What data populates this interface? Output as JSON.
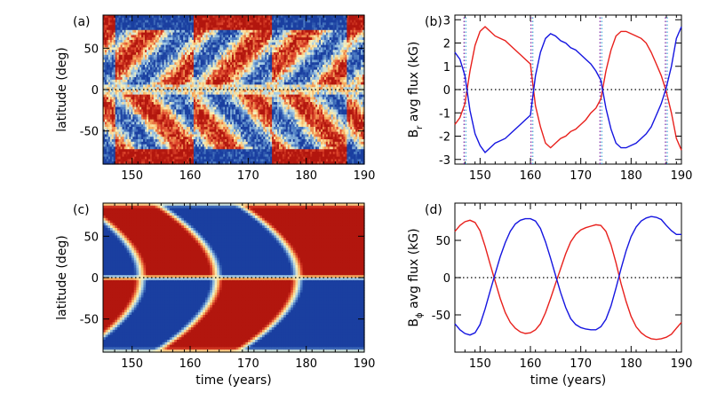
{
  "chart_data": [
    {
      "id": "a",
      "type": "heatmap",
      "panel_label": "(a)",
      "xlabel": "",
      "ylabel": "latitude (deg)",
      "xlim": [
        145,
        190
      ],
      "ylim": [
        -90,
        90
      ],
      "xticks": [
        150,
        160,
        170,
        180,
        190
      ],
      "yticks": [
        -50,
        0,
        50
      ],
      "zero_line": "dotted",
      "colormap": [
        "#1a3fa0",
        "#4f7fc4",
        "#a9cfe6",
        "#fbf1b8",
        "#f7b463",
        "#e0492e",
        "#b2160e"
      ],
      "texture": "noisy",
      "polar_sign_changes": [
        147,
        160.5,
        174,
        187
      ],
      "reversal_times": [
        147,
        160.5,
        174,
        187
      ]
    },
    {
      "id": "b",
      "type": "line",
      "panel_label": "(b)",
      "xlabel": "",
      "ylabel": "B_r avg flux (kG)",
      "ylabel_main": "B",
      "ylabel_sub": "r",
      "ylabel_rest": " avg flux (kG)",
      "xlim": [
        145,
        190
      ],
      "ylim": [
        -3.2,
        3.2
      ],
      "xticks": [
        150,
        160,
        170,
        180,
        190
      ],
      "yticks": [
        -3,
        -2,
        -1,
        0,
        1,
        2,
        3
      ],
      "zero_line": "dotted",
      "vertical_markers": [
        147,
        160.3,
        174,
        187
      ],
      "vertical_marker_colors": [
        "#7a1fa2",
        "#3fa7d6"
      ],
      "series": [
        {
          "color": "#e8201c",
          "x": [
            145,
            146,
            147,
            148,
            149,
            150,
            151,
            152,
            153,
            154,
            155,
            156,
            157,
            158,
            159,
            160,
            161,
            162,
            163,
            164,
            165,
            166,
            167,
            168,
            169,
            170,
            171,
            172,
            173,
            174,
            175,
            176,
            177,
            178,
            179,
            180,
            181,
            182,
            183,
            184,
            185,
            186,
            187,
            188,
            189,
            190
          ],
          "y": [
            -1.5,
            -1.2,
            -0.6,
            0.8,
            1.9,
            2.5,
            2.7,
            2.5,
            2.3,
            2.2,
            2.1,
            1.9,
            1.7,
            1.5,
            1.3,
            1.1,
            -0.7,
            -1.6,
            -2.3,
            -2.5,
            -2.3,
            -2.1,
            -2.0,
            -1.8,
            -1.7,
            -1.5,
            -1.3,
            -1.0,
            -0.8,
            -0.4,
            0.8,
            1.7,
            2.3,
            2.5,
            2.5,
            2.4,
            2.3,
            2.2,
            2.0,
            1.6,
            1.1,
            0.6,
            -0.1,
            -1.0,
            -2.1,
            -2.6
          ]
        },
        {
          "color": "#1515e0",
          "x": [
            145,
            146,
            147,
            148,
            149,
            150,
            151,
            152,
            153,
            154,
            155,
            156,
            157,
            158,
            159,
            160,
            161,
            162,
            163,
            164,
            165,
            166,
            167,
            168,
            169,
            170,
            171,
            172,
            173,
            174,
            175,
            176,
            177,
            178,
            179,
            180,
            181,
            182,
            183,
            184,
            185,
            186,
            187,
            188,
            189,
            190
          ],
          "y": [
            1.6,
            1.3,
            0.6,
            -0.9,
            -1.9,
            -2.4,
            -2.7,
            -2.5,
            -2.3,
            -2.2,
            -2.1,
            -1.9,
            -1.7,
            -1.5,
            -1.3,
            -1.1,
            0.6,
            1.6,
            2.2,
            2.4,
            2.3,
            2.1,
            2.0,
            1.8,
            1.7,
            1.5,
            1.3,
            1.1,
            0.8,
            0.4,
            -0.8,
            -1.7,
            -2.3,
            -2.5,
            -2.5,
            -2.4,
            -2.3,
            -2.1,
            -1.9,
            -1.6,
            -1.1,
            -0.6,
            0.1,
            1.0,
            2.2,
            2.7
          ]
        }
      ]
    },
    {
      "id": "c",
      "type": "heatmap",
      "panel_label": "(c)",
      "xlabel": "time (years)",
      "ylabel": "latitude (deg)",
      "xlim": [
        145,
        190
      ],
      "ylim": [
        -90,
        90
      ],
      "xticks": [
        150,
        160,
        170,
        180,
        190
      ],
      "yticks": [
        -50,
        0,
        50
      ],
      "zero_line": "dotted",
      "colormap": [
        "#1a3fa0",
        "#4f7fc4",
        "#a9cfe6",
        "#fbf1b8",
        "#f7b463",
        "#e0492e",
        "#b2160e"
      ],
      "texture": "smooth",
      "equator_switch_times": [
        151.5,
        164.5,
        178.5
      ],
      "pole_switch_times": [
        152,
        165.5,
        179,
        190
      ],
      "reversal_times": [
        151.5,
        164.5,
        178.5
      ]
    },
    {
      "id": "d",
      "type": "line",
      "panel_label": "(d)",
      "xlabel": "time (years)",
      "ylabel": "B_phi avg flux (kG)",
      "ylabel_main": "B",
      "ylabel_sub": "ϕ",
      "ylabel_rest": " avg flux (kG)",
      "xlim": [
        145,
        190
      ],
      "ylim": [
        -100,
        100
      ],
      "xticks": [
        150,
        160,
        170,
        180,
        190
      ],
      "yticks": [
        -50,
        0,
        50
      ],
      "zero_line": "dotted",
      "series": [
        {
          "color": "#e8201c",
          "x": [
            145,
            146,
            147,
            148,
            149,
            150,
            151,
            152,
            153,
            154,
            155,
            156,
            157,
            158,
            159,
            160,
            161,
            162,
            163,
            164,
            165,
            166,
            167,
            168,
            169,
            170,
            171,
            172,
            173,
            174,
            175,
            176,
            177,
            178,
            179,
            180,
            181,
            182,
            183,
            184,
            185,
            186,
            187,
            188,
            189,
            190
          ],
          "y": [
            62,
            70,
            75,
            77,
            74,
            63,
            42,
            18,
            -5,
            -28,
            -47,
            -60,
            -68,
            -73,
            -75,
            -74,
            -70,
            -62,
            -47,
            -28,
            -8,
            12,
            32,
            48,
            58,
            64,
            67,
            69,
            71,
            70,
            62,
            44,
            20,
            -8,
            -32,
            -52,
            -66,
            -74,
            -79,
            -82,
            -83,
            -82,
            -80,
            -76,
            -68,
            -60
          ]
        },
        {
          "color": "#1515e0",
          "x": [
            145,
            146,
            147,
            148,
            149,
            150,
            151,
            152,
            153,
            154,
            155,
            156,
            157,
            158,
            159,
            160,
            161,
            162,
            163,
            164,
            165,
            166,
            167,
            168,
            169,
            170,
            171,
            172,
            173,
            174,
            175,
            176,
            177,
            178,
            179,
            180,
            181,
            182,
            183,
            184,
            185,
            186,
            187,
            188,
            189,
            190
          ],
          "y": [
            -62,
            -70,
            -75,
            -77,
            -74,
            -63,
            -42,
            -18,
            5,
            28,
            47,
            62,
            72,
            77,
            79,
            79,
            76,
            66,
            48,
            26,
            3,
            -20,
            -40,
            -55,
            -63,
            -67,
            -69,
            -70,
            -70,
            -66,
            -56,
            -38,
            -14,
            12,
            36,
            55,
            68,
            76,
            80,
            82,
            81,
            78,
            70,
            63,
            58,
            58
          ]
        }
      ]
    }
  ]
}
